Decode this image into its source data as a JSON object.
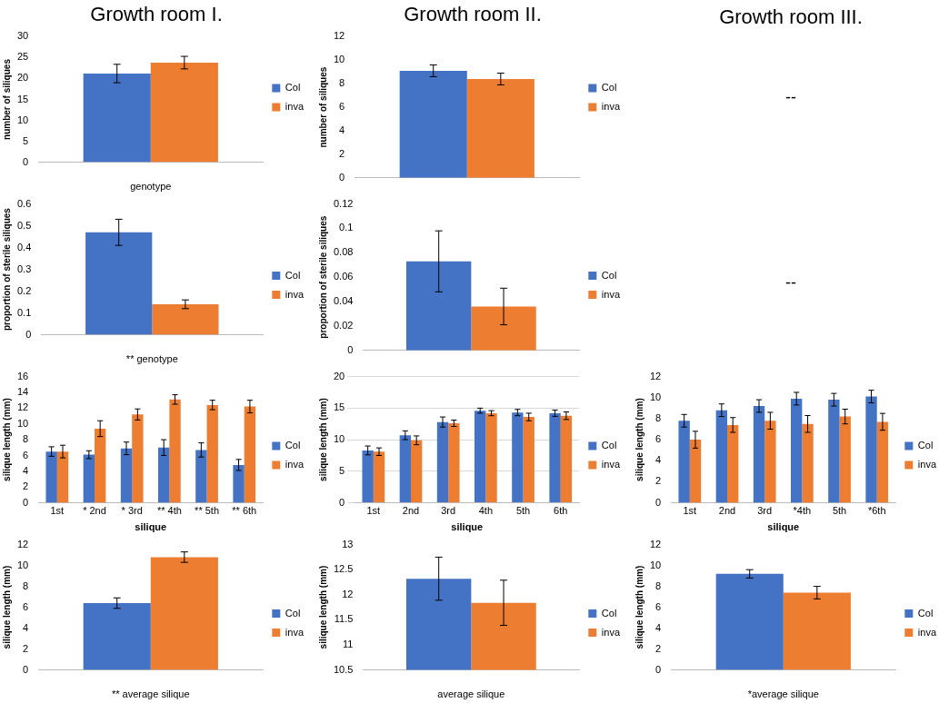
{
  "chart_data": [
    {
      "type": "bar",
      "title": "Growth room I.",
      "xlabel": "genotype",
      "ylabel": "number of siliques",
      "categories": [
        null
      ],
      "legend": "right",
      "ylim": [
        0,
        30
      ],
      "yticks": [
        0,
        5,
        10,
        15,
        20,
        25,
        30
      ],
      "series": [
        {
          "name": "Col",
          "color": "#4472c4",
          "values": [
            21.2
          ],
          "errors": [
            2.2
          ]
        },
        {
          "name": "inva",
          "color": "#ed7d31",
          "values": [
            23.8
          ],
          "errors": [
            1.5
          ]
        }
      ]
    },
    {
      "type": "bar",
      "title": "Growth room II.",
      "ylabel": "number of siliques",
      "categories": [
        null
      ],
      "legend": "right",
      "ylim": [
        0,
        12
      ],
      "yticks": [
        0,
        2,
        4,
        6,
        8,
        10,
        12
      ],
      "series": [
        {
          "name": "Col",
          "color": "#4472c4",
          "values": [
            9.1
          ],
          "errors": [
            0.5
          ]
        },
        {
          "name": "inva",
          "color": "#ed7d31",
          "values": [
            8.4
          ],
          "errors": [
            0.5
          ]
        }
      ]
    },
    {
      "type": "other",
      "title": "Growth room III.",
      "annotations": [
        "--"
      ]
    },
    {
      "type": "bar",
      "xlabel": "** genotype",
      "ylabel": "proportion of sterile siliques",
      "categories": [
        null
      ],
      "legend": "right",
      "ylim": [
        0,
        0.6
      ],
      "yticks": [
        0,
        0.1,
        0.2,
        0.3,
        0.4,
        0.5,
        0.6
      ],
      "series": [
        {
          "name": "Col",
          "color": "#4472c4",
          "values": [
            0.47
          ],
          "errors": [
            0.06
          ]
        },
        {
          "name": "inva",
          "color": "#ed7d31",
          "values": [
            0.14
          ],
          "errors": [
            0.02
          ]
        }
      ]
    },
    {
      "type": "bar",
      "ylabel": "proportion of sterile siliques",
      "categories": [
        null
      ],
      "legend": "right",
      "ylim": [
        0,
        0.12
      ],
      "yticks": [
        0,
        0.02,
        0.04,
        0.06,
        0.08,
        0.1,
        0.12
      ],
      "series": [
        {
          "name": "Col",
          "color": "#4472c4",
          "values": [
            0.073
          ],
          "errors": [
            0.025
          ]
        },
        {
          "name": "inva",
          "color": "#ed7d31",
          "values": [
            0.036
          ],
          "errors": [
            0.015
          ]
        }
      ]
    },
    {
      "type": "other",
      "annotations": [
        "--"
      ]
    },
    {
      "type": "bar",
      "xlabel": "silique",
      "ylabel": "silique length (mm)",
      "categories": [
        "1st",
        "* 2nd",
        "* 3rd",
        "** 4th",
        "** 5th",
        "** 6th"
      ],
      "legend": "right",
      "ylim": [
        0,
        16
      ],
      "yticks": [
        0,
        2,
        4,
        6,
        8,
        10,
        12,
        14,
        16
      ],
      "series": [
        {
          "name": "Col",
          "color": "#4472c4",
          "values": [
            6.5,
            6.1,
            6.9,
            7.0,
            6.7,
            4.8
          ],
          "errors": [
            0.6,
            0.5,
            0.8,
            1.0,
            0.9,
            0.7
          ]
        },
        {
          "name": "inva",
          "color": "#ed7d31",
          "values": [
            6.5,
            9.4,
            11.2,
            13.1,
            12.4,
            12.2
          ],
          "errors": [
            0.8,
            1.0,
            0.7,
            0.6,
            0.6,
            0.8
          ]
        }
      ]
    },
    {
      "type": "bar",
      "xlabel": "silique",
      "ylabel": "silique length (mm)",
      "categories": [
        "1st",
        "2nd",
        "3rd",
        "4th",
        "5th",
        "6th"
      ],
      "legend": "right",
      "grid": "y",
      "ylim": [
        0,
        20
      ],
      "yticks": [
        0,
        5,
        10,
        15,
        20
      ],
      "series": [
        {
          "name": "Col",
          "color": "#4472c4",
          "values": [
            8.3,
            10.7,
            12.8,
            14.6,
            14.3,
            14.2
          ],
          "errors": [
            0.7,
            0.7,
            0.8,
            0.4,
            0.5,
            0.5
          ]
        },
        {
          "name": "inva",
          "color": "#ed7d31",
          "values": [
            8.1,
            9.9,
            12.6,
            14.2,
            13.6,
            13.8
          ],
          "errors": [
            0.6,
            0.7,
            0.5,
            0.4,
            0.6,
            0.6
          ]
        }
      ]
    },
    {
      "type": "bar",
      "xlabel": "silique",
      "ylabel": "silique length (mm)",
      "categories": [
        "1st",
        "2nd",
        "3rd",
        "*4th",
        "5th",
        "*6th"
      ],
      "legend": "right",
      "ylim": [
        0,
        12
      ],
      "yticks": [
        0,
        2,
        4,
        6,
        8,
        10,
        12
      ],
      "series": [
        {
          "name": "Col",
          "color": "#4472c4",
          "values": [
            7.8,
            8.8,
            9.2,
            9.9,
            9.8,
            10.1
          ],
          "errors": [
            0.6,
            0.6,
            0.6,
            0.6,
            0.6,
            0.6
          ]
        },
        {
          "name": "inva",
          "color": "#ed7d31",
          "values": [
            6.0,
            7.4,
            7.8,
            7.5,
            8.2,
            7.7
          ],
          "errors": [
            0.8,
            0.7,
            0.8,
            0.8,
            0.7,
            0.8
          ]
        }
      ]
    },
    {
      "type": "bar",
      "xlabel": "** average silique",
      "ylabel": "silique length (mm)",
      "categories": [
        null
      ],
      "legend": "right",
      "ylim": [
        0,
        12
      ],
      "yticks": [
        0,
        2,
        4,
        6,
        8,
        10,
        12
      ],
      "series": [
        {
          "name": "Col",
          "color": "#4472c4",
          "values": [
            6.4
          ],
          "errors": [
            0.5
          ]
        },
        {
          "name": "inva",
          "color": "#ed7d31",
          "values": [
            10.8
          ],
          "errors": [
            0.5
          ]
        }
      ]
    },
    {
      "type": "bar",
      "xlabel": "average silique",
      "ylabel": "silique length (mm)",
      "categories": [
        null
      ],
      "legend": "right",
      "ylim": [
        10.5,
        13
      ],
      "yticks": [
        10.5,
        11,
        11.5,
        12,
        12.5,
        13
      ],
      "series": [
        {
          "name": "Col",
          "color": "#4472c4",
          "values": [
            12.32
          ],
          "errors": [
            0.43
          ]
        },
        {
          "name": "inva",
          "color": "#ed7d31",
          "values": [
            11.84
          ],
          "errors": [
            0.45
          ]
        }
      ]
    },
    {
      "type": "bar",
      "xlabel": "*average silique",
      "ylabel": "silique length (mm)",
      "categories": [
        null
      ],
      "legend": "right",
      "ylim": [
        0,
        12
      ],
      "yticks": [
        0,
        2,
        4,
        6,
        8,
        10,
        12
      ],
      "series": [
        {
          "name": "Col",
          "color": "#4472c4",
          "values": [
            9.2
          ],
          "errors": [
            0.4
          ]
        },
        {
          "name": "inva",
          "color": "#ed7d31",
          "values": [
            7.4
          ],
          "errors": [
            0.6
          ]
        }
      ]
    }
  ]
}
